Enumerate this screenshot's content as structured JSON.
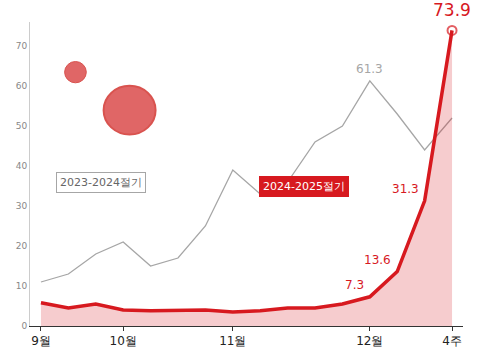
{
  "chart_data": {
    "type": "line",
    "categories": [
      "9월",
      null,
      null,
      "10월",
      null,
      null,
      null,
      "11월",
      null,
      null,
      null,
      null,
      "12월",
      null,
      null,
      "4주"
    ],
    "series": [
      {
        "name": "2023-2024절기",
        "color": "#a6a6a6",
        "values": [
          11,
          13,
          18,
          21,
          15,
          17,
          25,
          39,
          33,
          36,
          46,
          50,
          61.3,
          53,
          44,
          52
        ],
        "value_labels": [
          null,
          null,
          null,
          null,
          null,
          null,
          null,
          null,
          null,
          null,
          null,
          null,
          "61.3",
          null,
          null,
          null
        ]
      },
      {
        "name": "2024-2025절기",
        "color": "#d7191f",
        "marker": "circle-open",
        "values": [
          5.8,
          4.5,
          5.5,
          4,
          3.8,
          3.8,
          4,
          3.5,
          3.8,
          4.5,
          4.5,
          5.5,
          7.3,
          13.6,
          31.3,
          73.9
        ],
        "value_labels": [
          null,
          null,
          null,
          null,
          null,
          null,
          null,
          null,
          null,
          null,
          null,
          null,
          "7.3",
          "13.6",
          "31.3",
          "73.9"
        ]
      }
    ],
    "ylim": [
      0,
      76
    ],
    "yticks": [
      0,
      10,
      20,
      30,
      40,
      50,
      60,
      70
    ],
    "grid": false,
    "legend": false,
    "data_labels": true
  }
}
